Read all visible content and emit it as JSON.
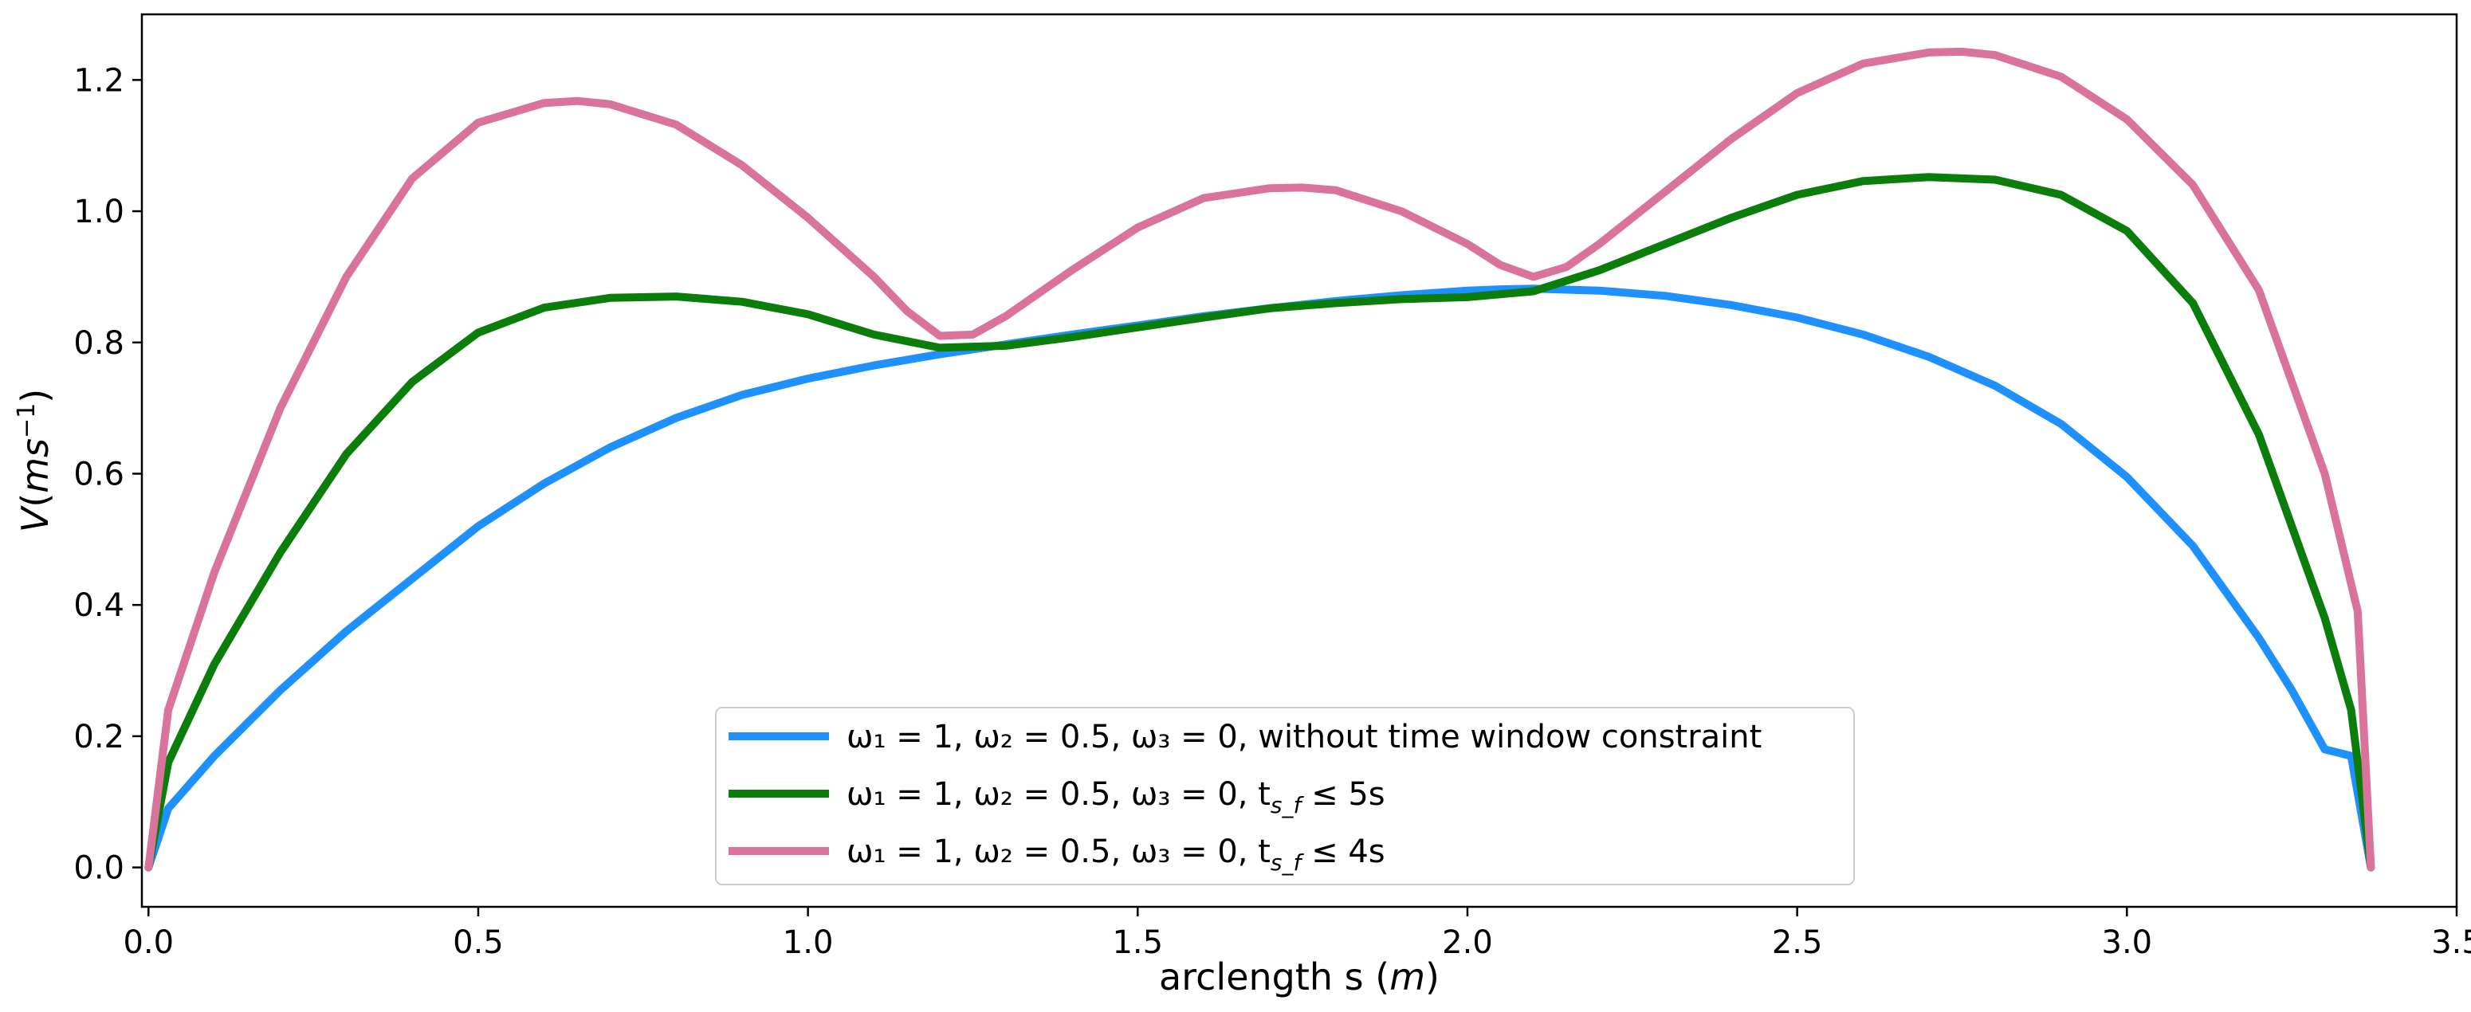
{
  "chart_data": {
    "type": "line",
    "title": "",
    "xlabel_text": "arclength s (",
    "xlabel_var": "m",
    "xlabel_close": ")",
    "ylabel_var": "V",
    "ylabel_open": "(",
    "ylabel_unit": "ms",
    "ylabel_exp": "−1",
    "ylabel_close": ")",
    "xlim": [
      -0.01,
      3.5
    ],
    "ylim": [
      -0.06,
      1.3
    ],
    "xticks": [
      "0.0",
      "0.5",
      "1.0",
      "1.5",
      "2.0",
      "2.5",
      "3.0",
      "3.5"
    ],
    "yticks": [
      "0.0",
      "0.2",
      "0.4",
      "0.6",
      "0.8",
      "1.0",
      "1.2"
    ],
    "grid": false,
    "legend_position": "lower-center",
    "series": [
      {
        "name": "ω1 = 1, ω2 = 0.5, ω3 = 0, without time window constraint",
        "legend_main": "ω₁ = 1, ω₂ = 0.5, ω₃ = 0, without time window constraint",
        "legend_sub": "",
        "legend_tail": "",
        "color": "#1e90ff",
        "x": [
          0.0,
          0.03,
          0.1,
          0.2,
          0.3,
          0.4,
          0.5,
          0.6,
          0.7,
          0.8,
          0.9,
          1.0,
          1.1,
          1.2,
          1.3,
          1.4,
          1.5,
          1.6,
          1.7,
          1.8,
          1.9,
          2.0,
          2.05,
          2.1,
          2.2,
          2.3,
          2.4,
          2.5,
          2.6,
          2.7,
          2.8,
          2.9,
          3.0,
          3.1,
          3.2,
          3.25,
          3.3,
          3.34,
          3.37
        ],
        "y": [
          0.0,
          0.09,
          0.17,
          0.27,
          0.36,
          0.44,
          0.52,
          0.585,
          0.64,
          0.685,
          0.72,
          0.745,
          0.765,
          0.782,
          0.797,
          0.812,
          0.826,
          0.84,
          0.852,
          0.863,
          0.872,
          0.879,
          0.881,
          0.882,
          0.879,
          0.871,
          0.857,
          0.838,
          0.812,
          0.778,
          0.734,
          0.676,
          0.595,
          0.49,
          0.35,
          0.27,
          0.18,
          0.17,
          0.0
        ]
      },
      {
        "name": "ω1 = 1, ω2 = 0.5, ω3 = 0, ts_f ≤ 5s",
        "legend_main": "ω₁ = 1, ω₂ = 0.5, ω₃ = 0, t",
        "legend_sub": "s_f",
        "legend_tail": " ≤ 5s",
        "color": "#0a7d0a",
        "x": [
          0.0,
          0.03,
          0.1,
          0.2,
          0.3,
          0.4,
          0.5,
          0.6,
          0.7,
          0.8,
          0.9,
          1.0,
          1.1,
          1.2,
          1.3,
          1.4,
          1.5,
          1.6,
          1.7,
          1.8,
          1.9,
          2.0,
          2.1,
          2.2,
          2.3,
          2.4,
          2.5,
          2.6,
          2.7,
          2.8,
          2.9,
          3.0,
          3.1,
          3.2,
          3.3,
          3.34,
          3.37
        ],
        "y": [
          0.0,
          0.16,
          0.31,
          0.48,
          0.63,
          0.74,
          0.815,
          0.853,
          0.868,
          0.87,
          0.862,
          0.843,
          0.812,
          0.792,
          0.795,
          0.808,
          0.823,
          0.838,
          0.852,
          0.86,
          0.866,
          0.869,
          0.878,
          0.91,
          0.95,
          0.99,
          1.025,
          1.046,
          1.052,
          1.048,
          1.025,
          0.97,
          0.86,
          0.66,
          0.38,
          0.24,
          0.0
        ]
      },
      {
        "name": "ω1 = 1, ω2 = 0.5, ω3 = 0, ts_f ≤ 4s",
        "legend_main": "ω₁ = 1, ω₂ = 0.5, ω₃ = 0, t",
        "legend_sub": "s_f",
        "legend_tail": " ≤ 4s",
        "color": "#d9739c",
        "x": [
          0.0,
          0.03,
          0.1,
          0.2,
          0.3,
          0.4,
          0.5,
          0.6,
          0.65,
          0.7,
          0.8,
          0.9,
          1.0,
          1.1,
          1.15,
          1.2,
          1.25,
          1.3,
          1.4,
          1.5,
          1.6,
          1.7,
          1.75,
          1.8,
          1.9,
          2.0,
          2.05,
          2.1,
          2.15,
          2.2,
          2.3,
          2.4,
          2.5,
          2.6,
          2.7,
          2.75,
          2.8,
          2.9,
          3.0,
          3.1,
          3.2,
          3.3,
          3.35,
          3.37
        ],
        "y": [
          0.0,
          0.24,
          0.45,
          0.7,
          0.9,
          1.05,
          1.135,
          1.165,
          1.168,
          1.163,
          1.132,
          1.07,
          0.99,
          0.9,
          0.848,
          0.81,
          0.812,
          0.84,
          0.91,
          0.975,
          1.02,
          1.035,
          1.036,
          1.032,
          1.0,
          0.95,
          0.918,
          0.9,
          0.915,
          0.95,
          1.03,
          1.11,
          1.18,
          1.225,
          1.242,
          1.243,
          1.238,
          1.205,
          1.14,
          1.04,
          0.88,
          0.6,
          0.39,
          0.0
        ]
      }
    ]
  }
}
